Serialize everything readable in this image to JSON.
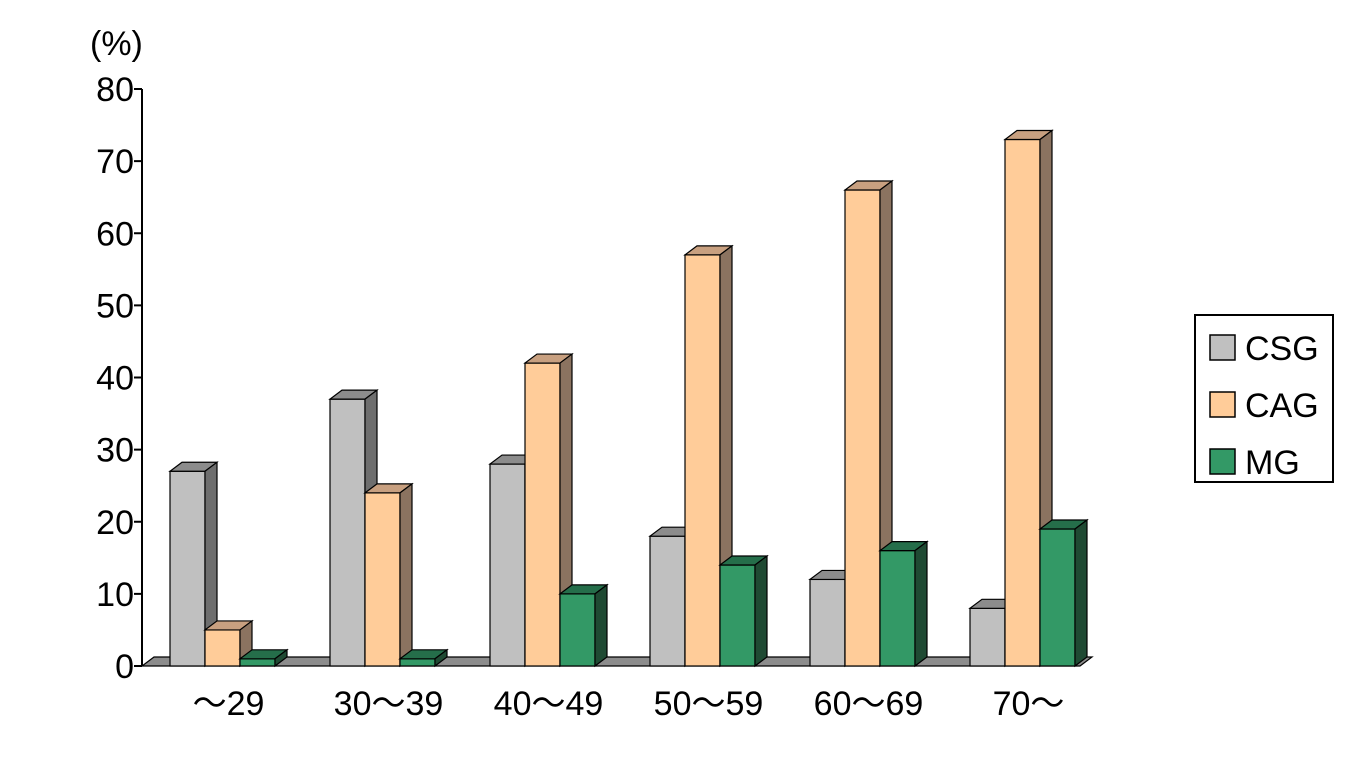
{
  "chart_data": {
    "type": "bar",
    "style": "3d-clustered-column",
    "unit_label": "(%)",
    "title": "",
    "xlabel": "",
    "ylabel": "",
    "ylim": [
      0,
      80
    ],
    "yticks": [
      0,
      10,
      20,
      30,
      40,
      50,
      60,
      70,
      80
    ],
    "grid": false,
    "legend_position": "right",
    "categories": [
      "～29",
      "30～39",
      "40～49",
      "50～59",
      "60～69",
      "70～"
    ],
    "series": [
      {
        "name": "CSG",
        "color": "#c0c0c0",
        "side_color": "#6e6e6e",
        "top_color": "#8c8c8c",
        "values": [
          27,
          37,
          28,
          18,
          12,
          8
        ]
      },
      {
        "name": "CAG",
        "color": "#ffcc99",
        "side_color": "#8b7360",
        "top_color": "#c8a080",
        "values": [
          5,
          24,
          42,
          57,
          66,
          73
        ]
      },
      {
        "name": "MG",
        "color": "#339966",
        "side_color": "#1f4a33",
        "top_color": "#256e4a",
        "values": [
          1,
          1,
          10,
          14,
          16,
          19
        ]
      }
    ]
  }
}
